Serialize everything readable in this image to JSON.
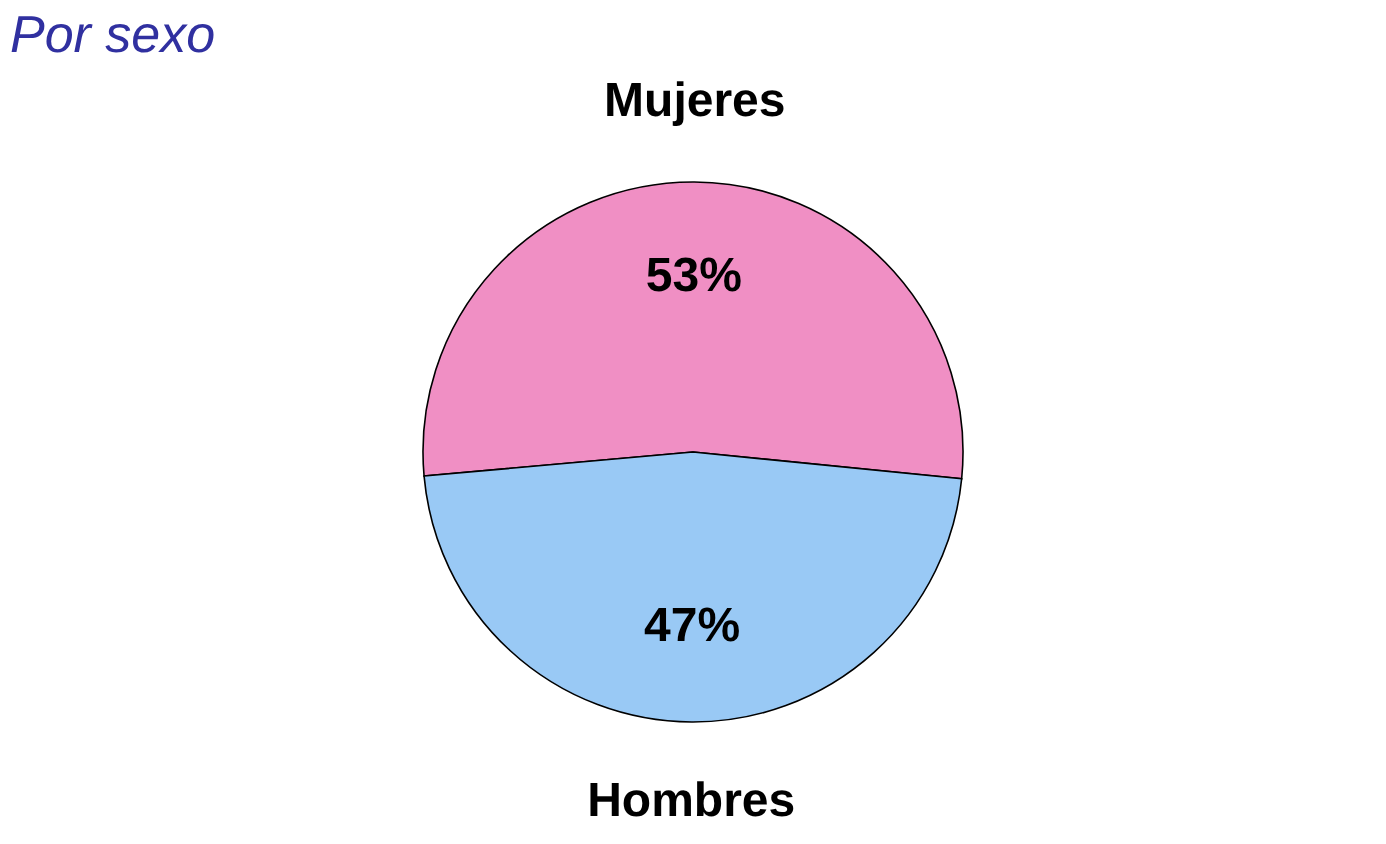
{
  "chart_data": {
    "type": "pie",
    "title": "Por sexo",
    "categories": [
      "Mujeres",
      "Hombres"
    ],
    "values": [
      53,
      47
    ],
    "value_labels": [
      "53%",
      "47%"
    ],
    "colors": [
      "#f08fc4",
      "#99c9f5"
    ],
    "legend": false
  }
}
